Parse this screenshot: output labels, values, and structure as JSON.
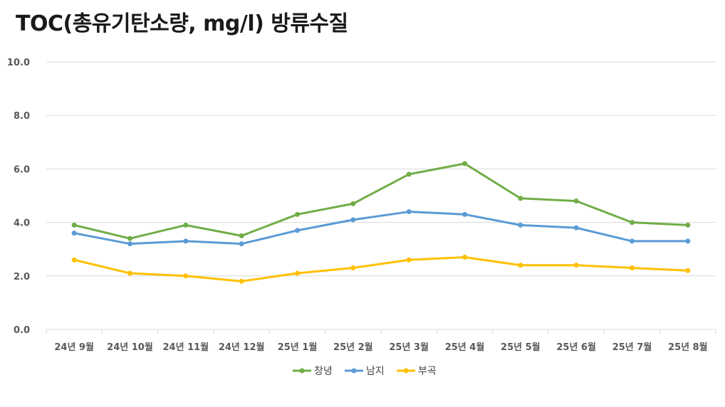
{
  "chart_data": {
    "type": "line",
    "title": "TOC(총유기탄소량, mg/l) 방류수질",
    "xlabel": "",
    "ylabel": "",
    "ylim": [
      0,
      10
    ],
    "yticks": [
      "0.0",
      "2.0",
      "4.0",
      "6.0",
      "8.0",
      "10.0"
    ],
    "grid": true,
    "legend": "bottom",
    "categories": [
      "24년 9월",
      "24년 10월",
      "24년 11월",
      "24년 12월",
      "25년 1월",
      "25년 2월",
      "25년 3월",
      "25년 4월",
      "25년 5월",
      "25년 6월",
      "25년 7월",
      "25년 8월"
    ],
    "series": [
      {
        "name": "창녕",
        "color": "#70AD47",
        "values": [
          3.9,
          3.4,
          3.9,
          3.5,
          4.3,
          4.7,
          5.8,
          6.2,
          4.9,
          4.8,
          4.0,
          3.9
        ]
      },
      {
        "name": "남지",
        "color": "#5B9BD5",
        "values": [
          3.6,
          3.2,
          3.3,
          3.2,
          3.7,
          4.1,
          4.4,
          4.3,
          3.9,
          3.8,
          3.3,
          3.3
        ]
      },
      {
        "name": "부곡",
        "color": "#FFC000",
        "values": [
          2.6,
          2.1,
          2.0,
          1.8,
          2.1,
          2.3,
          2.6,
          2.7,
          2.4,
          2.4,
          2.3,
          2.2
        ]
      }
    ]
  }
}
